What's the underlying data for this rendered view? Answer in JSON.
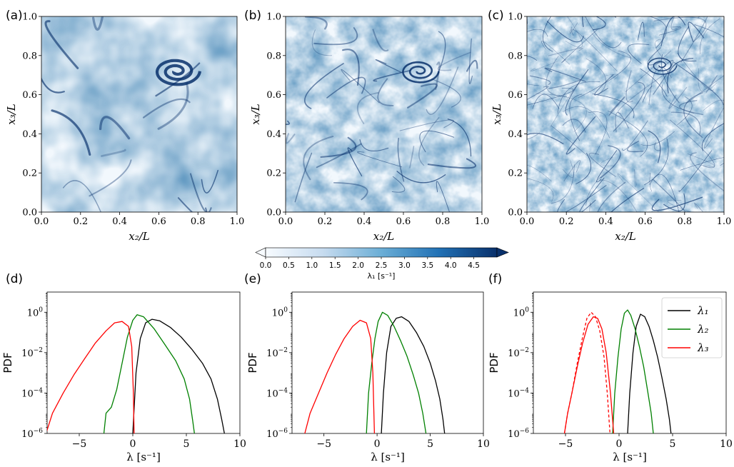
{
  "colors": {
    "ink": "#000000",
    "lambda1": "#000000",
    "lambda2": "#008000",
    "lambda3": "#ff0000",
    "field_light": "#f2f8fd",
    "field_mid": "#6fa8d6",
    "field_dark": "#08306b"
  },
  "colorbar": {
    "ticks": [
      "0.0",
      "0.5",
      "1.0",
      "1.5",
      "2.0",
      "2.5",
      "3.0",
      "3.5",
      "4.0",
      "4.5"
    ],
    "label": "λ₁ [s⁻¹]",
    "range": [
      0.0,
      5.0
    ],
    "extend": "both"
  },
  "chart_data": [
    {
      "panel": "(a)",
      "type": "heatmap",
      "xlabel": "x₂/L",
      "ylabel": "x₃/L",
      "xlim": [
        0.0,
        1.0
      ],
      "ylim": [
        0.0,
        1.0
      ],
      "xticks": [
        "0.0",
        "0.2",
        "0.4",
        "0.6",
        "0.8",
        "1.0"
      ],
      "yticks": [
        "0.0",
        "0.2",
        "0.4",
        "0.6",
        "0.8",
        "1.0"
      ],
      "colormap": "Blues",
      "texture": "smooth large-scale structures",
      "features": [
        {
          "x": 0.69,
          "y": 0.72,
          "r": 0.12
        }
      ]
    },
    {
      "panel": "(b)",
      "type": "heatmap",
      "xlabel": "x₂/L",
      "ylabel": "x₃/L",
      "xlim": [
        0.0,
        1.0
      ],
      "ylim": [
        0.0,
        1.0
      ],
      "xticks": [
        "0.0",
        "0.2",
        "0.4",
        "0.6",
        "0.8",
        "1.0"
      ],
      "yticks": [
        "0.0",
        "0.2",
        "0.4",
        "0.6",
        "0.8",
        "1.0"
      ],
      "colormap": "Blues",
      "texture": "intermediate filaments",
      "features": [
        {
          "x": 0.68,
          "y": 0.72,
          "r": 0.1
        }
      ]
    },
    {
      "panel": "(c)",
      "type": "heatmap",
      "xlabel": "x₂/L",
      "ylabel": "x₃/L",
      "xlim": [
        0.0,
        1.0
      ],
      "ylim": [
        0.0,
        1.0
      ],
      "xticks": [
        "0.0",
        "0.2",
        "0.4",
        "0.6",
        "0.8",
        "1.0"
      ],
      "yticks": [
        "0.0",
        "0.2",
        "0.4",
        "0.6",
        "0.8",
        "1.0"
      ],
      "colormap": "Blues",
      "texture": "fine small-scale filaments",
      "features": [
        {
          "x": 0.68,
          "y": 0.75,
          "r": 0.08
        }
      ]
    },
    {
      "panel": "(d)",
      "type": "line",
      "yscale": "log",
      "xlabel": "λ [s⁻¹]",
      "ylabel": "PDF",
      "xlim": [
        -8,
        10
      ],
      "ylim": [
        1e-06,
        10
      ],
      "xticks": [
        -5,
        0,
        5,
        10
      ],
      "yticks": [
        1e-06,
        0.0001,
        0.01,
        1
      ],
      "series": [
        {
          "key": "lambda1",
          "style": "solid",
          "x": [
            0,
            0.3,
            0.7,
            1.2,
            1.8,
            2.5,
            3.5,
            4.5,
            5.5,
            6.5,
            7.3,
            7.9,
            8.3,
            8.55
          ],
          "y": [
            1e-06,
            0.001,
            0.05,
            0.3,
            0.45,
            0.38,
            0.18,
            0.06,
            0.015,
            0.003,
            0.0005,
            5e-05,
            5e-06,
            1e-06
          ]
        },
        {
          "key": "lambda2",
          "style": "solid",
          "x": [
            -2.7,
            -2.5,
            -2.0,
            -1.5,
            -1.0,
            -0.5,
            0,
            0.4,
            1,
            2,
            3,
            4,
            4.8,
            5.3,
            5.6,
            5.75
          ],
          "y": [
            1e-06,
            1e-05,
            2e-05,
            0.00015,
            0.003,
            0.06,
            0.4,
            0.75,
            0.6,
            0.15,
            0.025,
            0.004,
            0.0005,
            5e-05,
            4e-06,
            1e-06
          ]
        },
        {
          "key": "lambda3",
          "style": "solid",
          "x": [
            -8.1,
            -7.5,
            -6.5,
            -5.5,
            -4.5,
            -3.5,
            -2.5,
            -1.7,
            -1.0,
            -0.4,
            -0.1,
            0.05,
            0.12
          ],
          "y": [
            1e-06,
            1e-05,
            0.0001,
            0.0008,
            0.005,
            0.03,
            0.12,
            0.3,
            0.35,
            0.2,
            0.02,
            0.0001,
            1e-06
          ]
        }
      ]
    },
    {
      "panel": "(e)",
      "type": "line",
      "yscale": "log",
      "xlabel": "λ [s⁻¹]",
      "ylabel": "PDF",
      "xlim": [
        -8,
        10
      ],
      "ylim": [
        1e-06,
        10
      ],
      "xticks": [
        -5,
        0,
        5,
        10
      ],
      "yticks": [
        1e-06,
        0.0001,
        0.01,
        1
      ],
      "series": [
        {
          "key": "lambda1",
          "style": "solid",
          "x": [
            0.4,
            0.6,
            0.9,
            1.3,
            1.8,
            2.3,
            3,
            3.7,
            4.4,
            5,
            5.5,
            5.9,
            6.2,
            6.35
          ],
          "y": [
            1e-06,
            0.0001,
            0.01,
            0.2,
            0.5,
            0.6,
            0.35,
            0.1,
            0.02,
            0.003,
            0.0004,
            5e-05,
            5e-06,
            1e-06
          ]
        },
        {
          "key": "lambda2",
          "style": "solid",
          "x": [
            -1.0,
            -0.8,
            -0.5,
            -0.2,
            0.1,
            0.5,
            1,
            1.6,
            2.2,
            2.8,
            3.4,
            3.9,
            4.3,
            4.6
          ],
          "y": [
            1e-06,
            0.0001,
            0.003,
            0.05,
            0.35,
            1.0,
            0.7,
            0.2,
            0.04,
            0.007,
            0.0008,
            0.0001,
            1e-05,
            1e-06
          ]
        },
        {
          "key": "lambda3",
          "style": "solid",
          "x": [
            -6.8,
            -6.3,
            -5.5,
            -4.7,
            -3.9,
            -3.1,
            -2.3,
            -1.6,
            -1.0,
            -0.6,
            -0.4,
            -0.25
          ],
          "y": [
            1e-06,
            1e-05,
            0.0001,
            0.001,
            0.008,
            0.05,
            0.2,
            0.4,
            0.3,
            0.05,
            0.001,
            1e-06
          ]
        }
      ]
    },
    {
      "panel": "(f)",
      "type": "line",
      "yscale": "log",
      "xlabel": "λ [s⁻¹]",
      "ylabel": "PDF",
      "xlim": [
        -8,
        10
      ],
      "ylim": [
        1e-06,
        10
      ],
      "xticks": [
        -5,
        0,
        5,
        10
      ],
      "yticks": [
        1e-06,
        0.0001,
        0.01,
        1
      ],
      "legend": {
        "placement": "top-right",
        "entries": [
          "λ₁",
          "λ₂",
          "λ₃"
        ]
      },
      "series": [
        {
          "key": "lambda1",
          "style": "solid",
          "x": [
            0.8,
            1.0,
            1.3,
            1.6,
            2.0,
            2.4,
            2.8,
            3.2,
            3.6,
            4.0,
            4.4,
            4.7,
            4.85
          ],
          "y": [
            1e-06,
            0.0001,
            0.01,
            0.2,
            0.8,
            0.6,
            0.2,
            0.04,
            0.006,
            0.0006,
            5e-05,
            5e-06,
            1e-06
          ]
        },
        {
          "key": "lambda2",
          "style": "solid",
          "x": [
            -0.6,
            -0.4,
            -0.1,
            0.2,
            0.5,
            0.8,
            1.1,
            1.5,
            1.9,
            2.3,
            2.7,
            3.0,
            3.2
          ],
          "y": [
            1e-06,
            0.0001,
            0.006,
            0.15,
            0.9,
            1.3,
            0.7,
            0.15,
            0.02,
            0.002,
            0.0001,
            1e-05,
            1e-06
          ]
        },
        {
          "key": "lambda3",
          "style": "solid",
          "x": [
            -5.1,
            -4.8,
            -4.4,
            -3.9,
            -3.4,
            -2.9,
            -2.4,
            -2.0,
            -1.6,
            -1.2,
            -0.8,
            -0.5
          ],
          "y": [
            1e-06,
            1e-05,
            0.0001,
            0.002,
            0.03,
            0.25,
            0.6,
            0.5,
            0.15,
            0.01,
            0.0001,
            1e-06
          ]
        },
        {
          "key": "lambda3",
          "style": "dashed",
          "x": [
            -5.1,
            -4.8,
            -4.4,
            -3.9,
            -3.4,
            -3.0,
            -2.6,
            -2.2,
            -1.8,
            -1.4,
            -1.1,
            -0.85
          ],
          "y": [
            1e-06,
            1e-05,
            0.0001,
            0.003,
            0.06,
            0.5,
            1.0,
            0.6,
            0.12,
            0.006,
            0.0001,
            1e-06
          ]
        }
      ]
    }
  ],
  "panel_labels": [
    "(a)",
    "(b)",
    "(c)",
    "(d)",
    "(e)",
    "(f)"
  ]
}
